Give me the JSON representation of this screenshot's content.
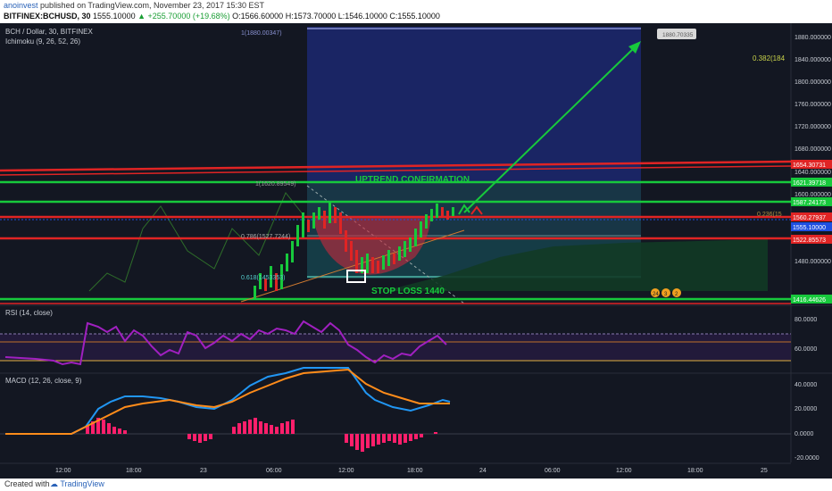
{
  "header": {
    "author": "anoinvest",
    "published_text": "published on TradingView.com, November 23, 2017 15:30 EST",
    "symbol": "BITFINEX:BCHUSD, 30",
    "ohlc_text": "1555.10000",
    "change": "+255.70000 (+19.68%)",
    "o": "O:1566.60000",
    "h": "H:1573.70000",
    "l": "L:1546.10000",
    "c": "C:1555.10000"
  },
  "main_pane": {
    "title": "BCH / Dollar, 30, BITFINEX",
    "indicator": "Ichimoku (9, 26, 52, 26)",
    "price_axis": [
      "1880.000000",
      "1840.000000",
      "1800.000000",
      "1760.000000",
      "1720.000000",
      "1680.000000",
      "1640.000000",
      "1600.000000",
      "1480.000000"
    ],
    "price_tags": [
      {
        "text": "1654.30731",
        "color": "#e02424"
      },
      {
        "text": "1621.39718",
        "color": "#17c93c"
      },
      {
        "text": "1587.24173",
        "color": "#17c93c"
      },
      {
        "text": "1560.27937",
        "color": "#e02424"
      },
      {
        "text": "1555.10000",
        "color": "#1e4fe0"
      },
      {
        "text": "1522.85573",
        "color": "#e02424"
      },
      {
        "text": "1416.44626",
        "color": "#17c93c"
      }
    ],
    "fib_labels": {
      "top": "1(1880.00347)",
      "one": "1(1620.89549)",
      "f786": "0.786(1527.7244)",
      "f618": "0.618(1453353)",
      "f382": "0.382(184",
      "f236": "0.236(15"
    },
    "target_bubble": "1880.70335",
    "annotations": {
      "uptrend": "UPTREND CONFIRMATION",
      "stoploss": "STOP LOSS 1440"
    },
    "event_badges": [
      "24",
      "3",
      "2"
    ]
  },
  "rsi_pane": {
    "title": "RSI (14, close)",
    "axis": [
      "80.0000",
      "60.0000"
    ]
  },
  "macd_pane": {
    "title": "MACD (12, 26, close, 9)",
    "axis": [
      "40.0000",
      "20.0000",
      "0.0000",
      "-20.0000"
    ]
  },
  "time_axis": [
    "12:00",
    "18:00",
    "23",
    "06:00",
    "12:00",
    "18:00",
    "24",
    "06:00",
    "12:00",
    "18:00",
    "25"
  ],
  "footer": {
    "created_with": "Created with",
    "brand": "TradingView"
  },
  "colors": {
    "background": "#131722",
    "green_line": "#17c93c",
    "red_line": "#e02424",
    "macd": "#2196f3",
    "signal": "#ff8c1a",
    "histogram": "#ff1f6b",
    "rsi": "#a020c0"
  }
}
